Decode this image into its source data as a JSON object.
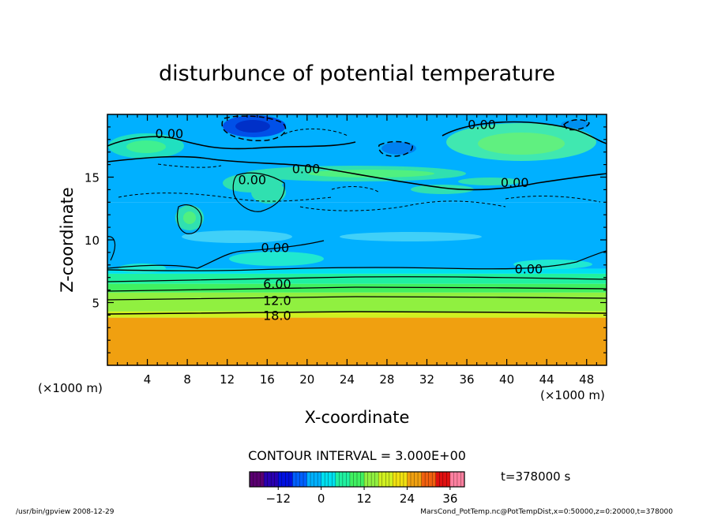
{
  "chart_data": {
    "type": "heatmap",
    "title": "disturbunce of potential temperature",
    "xlabel": "X-coordinate",
    "ylabel": "Z-coordinate",
    "x_unit_left": "(×1000 m)",
    "x_unit_right": "(×1000 m)",
    "xlim": [
      0,
      50
    ],
    "ylim": [
      0,
      20
    ],
    "x_ticks": [
      4,
      8,
      12,
      16,
      20,
      24,
      28,
      32,
      36,
      40,
      44,
      48
    ],
    "x_tick_labels": [
      "4",
      "8",
      "12",
      "16",
      "20",
      "24",
      "28",
      "32",
      "36",
      "40",
      "44",
      "48"
    ],
    "y_ticks": [
      5,
      10,
      15
    ],
    "y_tick_labels": [
      "5",
      "10",
      "15"
    ],
    "contour_interval_text": "CONTOUR INTERVAL = 3.000E+00",
    "contour_labels": [
      {
        "text": "0.00",
        "x": 6.2,
        "z": 18.5
      },
      {
        "text": "0.00",
        "x": 37.5,
        "z": 19.2
      },
      {
        "text": "0.00",
        "x": 19.9,
        "z": 15.7
      },
      {
        "text": "0.00",
        "x": 14.5,
        "z": 14.8
      },
      {
        "text": "0.00",
        "x": 40.8,
        "z": 14.6
      },
      {
        "text": "0.00",
        "x": 16.8,
        "z": 9.4
      },
      {
        "text": "0.00",
        "x": 42.2,
        "z": 7.7
      },
      {
        "text": "6.00",
        "x": 17.0,
        "z": 6.5
      },
      {
        "text": "12.0",
        "x": 17.0,
        "z": 5.2
      },
      {
        "text": "18.0",
        "x": 17.0,
        "z": 4.0
      }
    ],
    "field_layers": [
      {
        "z_from": 0,
        "z_to": 3.8,
        "value": 24
      },
      {
        "z_from": 3.8,
        "z_to": 4.3,
        "value": 18
      },
      {
        "z_from": 4.3,
        "z_to": 5.0,
        "value": 15
      },
      {
        "z_from": 5.0,
        "z_to": 5.8,
        "value": 12
      },
      {
        "z_from": 5.8,
        "z_to": 6.5,
        "value": 9
      },
      {
        "z_from": 6.5,
        "z_to": 7.3,
        "value": 6
      },
      {
        "z_from": 7.3,
        "z_to": 7.7,
        "value": 3
      },
      {
        "z_from": 7.7,
        "z_to": 13.0,
        "value": -2
      },
      {
        "z_from": 13.0,
        "z_to": 20.0,
        "value": -3
      }
    ],
    "colorbar": {
      "min": -20,
      "max": 40,
      "ticks": [
        -12,
        0,
        12,
        24,
        36
      ],
      "tick_labels": [
        "−12",
        "0",
        "12",
        "24",
        "36"
      ],
      "colors": [
        "#5a0070",
        "#2a00b0",
        "#0010e0",
        "#0060ff",
        "#00b0ff",
        "#00e0f0",
        "#20f0a0",
        "#40f060",
        "#90f040",
        "#d0f020",
        "#f0e010",
        "#f0a010",
        "#f06010",
        "#e01010",
        "#ff80a0"
      ]
    },
    "time_label": "t=378000 s"
  },
  "footer": {
    "left": "/usr/bin/gpview   2008-12-29",
    "right": "MarsCond_PotTemp.nc@PotTempDist,x=0:50000,z=0:20000,t=378000"
  }
}
